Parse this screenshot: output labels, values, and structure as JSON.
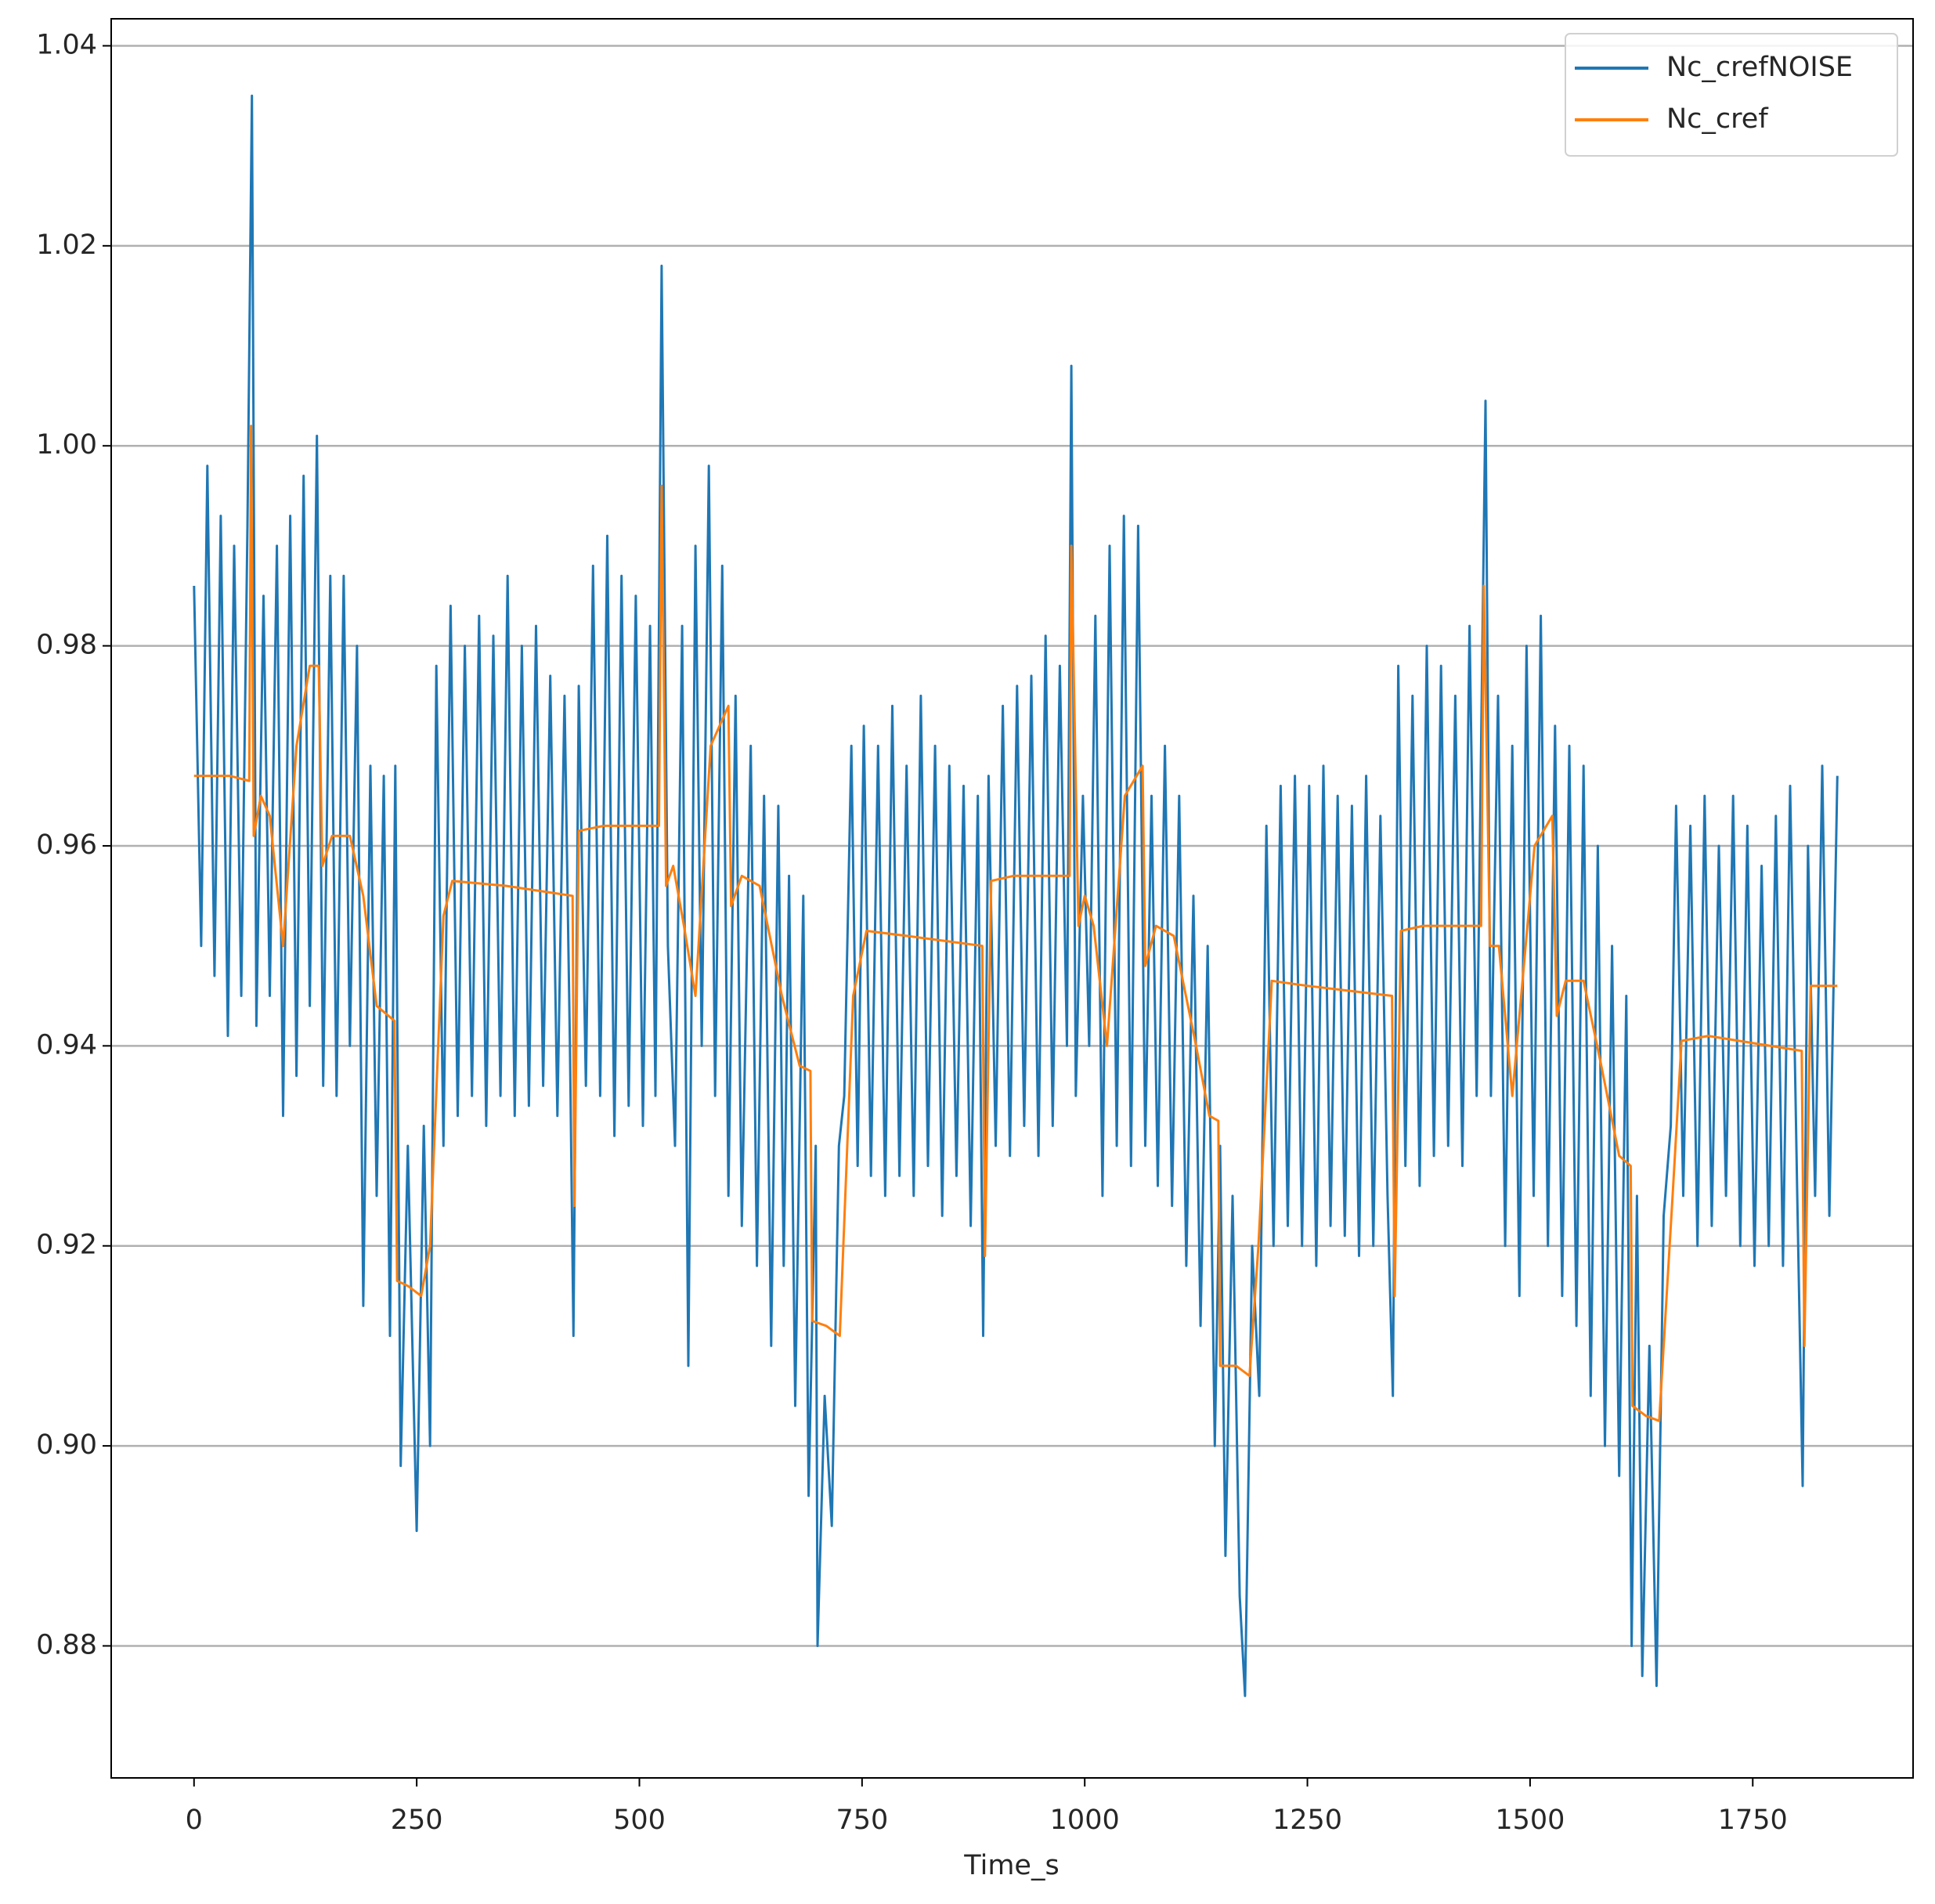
{
  "chart_data": {
    "type": "line",
    "xlabel": "Time_s",
    "xlim": [
      -93,
      1930
    ],
    "xticks": [
      0,
      250,
      500,
      750,
      1000,
      1250,
      1500,
      1750
    ],
    "ylim": [
      0.8668,
      1.0427
    ],
    "yticks": [
      0.88,
      {
        "value": 0.9,
        "label": "0.90"
      },
      0.92,
      0.94,
      0.96,
      0.98,
      {
        "value": 1,
        "label": "1.00"
      },
      1.02,
      1.04
    ],
    "grid": "y",
    "legend": "upper right",
    "series": [
      {
        "name": "Nc_crefNOISE",
        "color": "#1f77b4",
        "x": [
          0,
          8,
          15,
          23,
          30,
          38,
          45,
          53,
          60,
          65,
          70,
          78,
          85,
          93,
          100,
          108,
          115,
          123,
          130,
          138,
          145,
          153,
          160,
          168,
          175,
          183,
          190,
          198,
          205,
          213,
          220,
          226,
          232,
          240,
          250,
          258,
          265,
          272,
          280,
          288,
          296,
          304,
          312,
          320,
          328,
          336,
          344,
          352,
          360,
          368,
          376,
          384,
          392,
          400,
          408,
          416,
          422,
          426,
          432,
          440,
          448,
          456,
          464,
          472,
          480,
          488,
          496,
          504,
          512,
          518,
          525,
          532,
          540,
          548,
          555,
          563,
          570,
          578,
          585,
          593,
          600,
          608,
          615,
          625,
          632,
          640,
          648,
          656,
          662,
          668,
          675,
          684,
          690,
          698,
          700,
          708,
          716,
          724,
          730,
          738,
          745,
          752,
          760,
          768,
          776,
          784,
          792,
          800,
          808,
          816,
          824,
          832,
          840,
          848,
          856,
          864,
          872,
          880,
          886,
          892,
          900,
          908,
          916,
          924,
          932,
          940,
          948,
          956,
          964,
          972,
          980,
          985,
          990,
          998,
          1005,
          1012,
          1020,
          1028,
          1036,
          1044,
          1052,
          1060,
          1068,
          1075,
          1082,
          1090,
          1098,
          1106,
          1114,
          1122,
          1130,
          1138,
          1146,
          1152,
          1158,
          1166,
          1174,
          1180,
          1188,
          1196,
          1204,
          1212,
          1220,
          1228,
          1236,
          1244,
          1252,
          1260,
          1268,
          1276,
          1284,
          1292,
          1300,
          1308,
          1316,
          1324,
          1332,
          1340,
          1346,
          1352,
          1360,
          1368,
          1376,
          1384,
          1392,
          1400,
          1408,
          1416,
          1424,
          1432,
          1440,
          1450,
          1456,
          1464,
          1472,
          1480,
          1488,
          1496,
          1504,
          1512,
          1520,
          1528,
          1536,
          1544,
          1552,
          1560,
          1568,
          1576,
          1584,
          1592,
          1600,
          1608,
          1614,
          1620,
          1626,
          1634,
          1642,
          1650,
          1658,
          1664,
          1672,
          1680,
          1688,
          1696,
          1704,
          1712,
          1720,
          1728,
          1736,
          1744,
          1752,
          1760,
          1768,
          1776,
          1784,
          1792,
          1800,
          1806,
          1812,
          1820,
          1828,
          1836,
          1845
        ],
        "values": [
          0.986,
          0.95,
          0.998,
          0.947,
          0.993,
          0.941,
          0.99,
          0.945,
          0.992,
          1.035,
          0.942,
          0.985,
          0.945,
          0.99,
          0.933,
          0.993,
          0.937,
          0.997,
          0.944,
          1.001,
          0.936,
          0.987,
          0.935,
          0.987,
          0.94,
          0.98,
          0.914,
          0.968,
          0.925,
          0.967,
          0.911,
          0.968,
          0.898,
          0.93,
          0.8915,
          0.932,
          0.9,
          0.978,
          0.93,
          0.984,
          0.933,
          0.98,
          0.935,
          0.983,
          0.932,
          0.981,
          0.935,
          0.987,
          0.933,
          0.98,
          0.934,
          0.982,
          0.936,
          0.977,
          0.933,
          0.975,
          0.94,
          0.911,
          0.976,
          0.936,
          0.988,
          0.935,
          0.991,
          0.931,
          0.987,
          0.934,
          0.985,
          0.932,
          0.982,
          0.935,
          1.018,
          0.95,
          0.93,
          0.982,
          0.908,
          0.99,
          0.94,
          0.998,
          0.935,
          0.988,
          0.925,
          0.975,
          0.922,
          0.97,
          0.918,
          0.965,
          0.91,
          0.964,
          0.918,
          0.957,
          0.904,
          0.955,
          0.895,
          0.93,
          0.88,
          0.905,
          0.892,
          0.93,
          0.935,
          0.97,
          0.928,
          0.972,
          0.927,
          0.97,
          0.925,
          0.974,
          0.927,
          0.968,
          0.925,
          0.975,
          0.928,
          0.97,
          0.923,
          0.968,
          0.927,
          0.966,
          0.922,
          0.965,
          0.911,
          0.967,
          0.93,
          0.974,
          0.929,
          0.976,
          0.932,
          0.977,
          0.929,
          0.981,
          0.932,
          0.978,
          0.94,
          1.008,
          0.935,
          0.965,
          0.94,
          0.983,
          0.925,
          0.99,
          0.93,
          0.993,
          0.928,
          0.992,
          0.93,
          0.965,
          0.926,
          0.97,
          0.924,
          0.965,
          0.918,
          0.955,
          0.912,
          0.95,
          0.9,
          0.93,
          0.889,
          0.925,
          0.885,
          0.875,
          0.92,
          0.905,
          0.962,
          0.92,
          0.966,
          0.922,
          0.967,
          0.92,
          0.966,
          0.918,
          0.968,
          0.922,
          0.965,
          0.921,
          0.964,
          0.919,
          0.967,
          0.92,
          0.963,
          0.925,
          0.905,
          0.978,
          0.928,
          0.975,
          0.926,
          0.98,
          0.929,
          0.978,
          0.93,
          0.975,
          0.928,
          0.982,
          0.935,
          1.0045,
          0.935,
          0.975,
          0.92,
          0.97,
          0.915,
          0.98,
          0.925,
          0.983,
          0.92,
          0.972,
          0.915,
          0.97,
          0.912,
          0.968,
          0.905,
          0.96,
          0.9,
          0.95,
          0.897,
          0.945,
          0.88,
          0.925,
          0.877,
          0.91,
          0.876,
          0.923,
          0.932,
          0.964,
          0.925,
          0.962,
          0.92,
          0.965,
          0.922,
          0.96,
          0.925,
          0.965,
          0.92,
          0.962,
          0.918,
          0.958,
          0.92,
          0.963,
          0.918,
          0.966,
          0.925,
          0.896,
          0.96,
          0.925,
          0.968,
          0.923,
          0.967
        ]
      },
      {
        "name": "Nc_cref",
        "color": "#ff7f0e",
        "x": [
          0,
          40,
          62,
          64,
          67,
          75,
          85,
          100,
          115,
          130,
          140,
          144,
          155,
          175,
          190,
          205,
          225,
          228,
          240,
          255,
          265,
          280,
          290,
          350,
          425,
          427,
          432,
          460,
          522,
          525,
          530,
          538,
          550,
          563,
          580,
          600,
          603,
          615,
          635,
          660,
          680,
          692,
          694,
          710,
          725,
          740,
          755,
          800,
          885,
          888,
          895,
          920,
          983,
          985,
          993,
          1000,
          1010,
          1025,
          1045,
          1065,
          1068,
          1080,
          1100,
          1125,
          1140,
          1150,
          1152,
          1170,
          1185,
          1195,
          1210,
          1250,
          1345,
          1348,
          1355,
          1380,
          1445,
          1448,
          1455,
          1465,
          1480,
          1505,
          1525,
          1530,
          1540,
          1560,
          1580,
          1600,
          1613,
          1615,
          1630,
          1645,
          1660,
          1670,
          1700,
          1805,
          1808,
          1815,
          1845
        ],
        "values": [
          0.967,
          0.967,
          0.9665,
          1.002,
          0.961,
          0.965,
          0.963,
          0.95,
          0.97,
          0.978,
          0.978,
          0.958,
          0.961,
          0.961,
          0.955,
          0.944,
          0.9425,
          0.9165,
          0.916,
          0.915,
          0.92,
          0.953,
          0.9565,
          0.956,
          0.955,
          0.924,
          0.9615,
          0.962,
          0.962,
          0.996,
          0.956,
          0.958,
          0.952,
          0.945,
          0.97,
          0.974,
          0.954,
          0.957,
          0.956,
          0.945,
          0.938,
          0.9375,
          0.9125,
          0.912,
          0.911,
          0.945,
          0.9515,
          0.951,
          0.95,
          0.919,
          0.9565,
          0.957,
          0.957,
          0.99,
          0.952,
          0.955,
          0.952,
          0.94,
          0.965,
          0.968,
          0.948,
          0.952,
          0.951,
          0.94,
          0.933,
          0.9325,
          0.908,
          0.908,
          0.907,
          0.92,
          0.9465,
          0.946,
          0.945,
          0.915,
          0.9515,
          0.952,
          0.952,
          0.986,
          0.95,
          0.95,
          0.935,
          0.96,
          0.963,
          0.943,
          0.9465,
          0.9465,
          0.938,
          0.929,
          0.928,
          0.904,
          0.903,
          0.9025,
          0.925,
          0.9405,
          0.941,
          0.9395,
          0.91,
          0.946,
          0.946
        ]
      }
    ]
  }
}
